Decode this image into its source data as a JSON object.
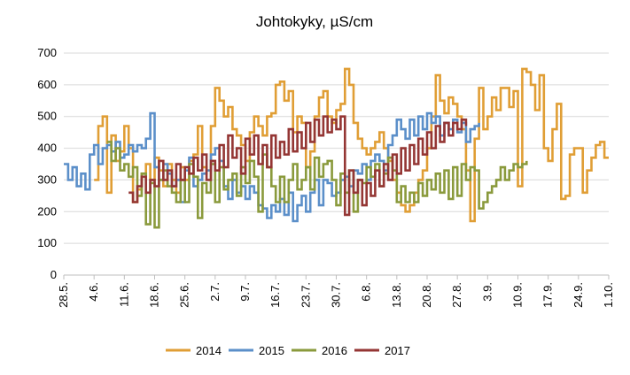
{
  "chart_data": {
    "type": "line",
    "title": "Johtokyky, µS/cm",
    "xlabel": "",
    "ylabel": "",
    "ylim": [
      0,
      700
    ],
    "yticks": [
      0,
      100,
      200,
      300,
      400,
      500,
      600,
      700
    ],
    "xlim": [
      0,
      126
    ],
    "xticks": [
      "28.5.",
      "4.6.",
      "11.6.",
      "18.6.",
      "25.6.",
      "2.7.",
      "9.7.",
      "16.7.",
      "23.7.",
      "30.7.",
      "6.8.",
      "13.8.",
      "20.8.",
      "27.8.",
      "3.9.",
      "10.9.",
      "17.9.",
      "24.9.",
      "1.10."
    ],
    "xtick_step_days": 7,
    "grid": "horizontal",
    "legend": "bottom",
    "series": [
      {
        "name": "2014",
        "color": "#E09E35",
        "x": [
          7,
          8,
          9,
          10,
          11,
          12,
          13,
          14,
          15,
          16,
          17,
          18,
          19,
          20,
          21,
          22,
          23,
          24,
          25,
          26,
          27,
          28,
          29,
          30,
          31,
          32,
          33,
          34,
          35,
          36,
          37,
          38,
          39,
          40,
          41,
          42,
          43,
          44,
          45,
          46,
          47,
          48,
          49,
          50,
          51,
          52,
          53,
          54,
          55,
          56,
          57,
          58,
          59,
          60,
          61,
          62,
          63,
          64,
          65,
          66,
          67,
          68,
          69,
          70,
          71,
          72,
          73,
          74,
          75,
          76,
          77,
          78,
          79,
          80,
          81,
          82,
          83,
          84,
          85,
          86,
          87,
          88,
          89,
          90,
          91,
          92,
          93,
          94,
          95,
          96,
          97,
          98,
          99,
          100,
          101,
          102,
          103,
          104,
          105,
          106,
          107,
          108,
          109,
          110,
          111,
          112,
          113,
          114,
          115,
          116,
          117,
          118,
          119,
          120,
          121,
          122,
          123,
          124,
          125,
          126
        ],
        "values": [
          300,
          470,
          500,
          260,
          440,
          360,
          390,
          470,
          400,
          230,
          270,
          320,
          350,
          300,
          370,
          330,
          280,
          350,
          300,
          260,
          340,
          300,
          360,
          380,
          470,
          340,
          330,
          470,
          590,
          550,
          500,
          530,
          460,
          440,
          410,
          360,
          450,
          500,
          470,
          440,
          500,
          510,
          600,
          610,
          550,
          580,
          450,
          500,
          480,
          340,
          390,
          500,
          560,
          580,
          500,
          480,
          520,
          540,
          650,
          600,
          480,
          430,
          400,
          380,
          400,
          420,
          450,
          400,
          360,
          300,
          260,
          220,
          200,
          220,
          260,
          300,
          330,
          400,
          500,
          630,
          550,
          510,
          560,
          540,
          500,
          460,
          330,
          170,
          430,
          590,
          460,
          500,
          560,
          520,
          590,
          590,
          530,
          580,
          280,
          650,
          640,
          600,
          520,
          630,
          400,
          360,
          460,
          540,
          240,
          250,
          380,
          400,
          400,
          260,
          330,
          370,
          410,
          420,
          370,
          370
        ]
      },
      {
        "name": "2015",
        "color": "#5B8FC9",
        "x": [
          0,
          1,
          2,
          3,
          4,
          5,
          6,
          7,
          8,
          9,
          10,
          11,
          12,
          13,
          14,
          15,
          16,
          17,
          18,
          19,
          20,
          21,
          22,
          23,
          24,
          25,
          26,
          27,
          28,
          29,
          30,
          31,
          32,
          33,
          34,
          35,
          36,
          37,
          38,
          39,
          40,
          41,
          42,
          43,
          44,
          45,
          46,
          47,
          48,
          49,
          50,
          51,
          52,
          53,
          54,
          55,
          56,
          57,
          58,
          59,
          60,
          61,
          62,
          63,
          64,
          65,
          66,
          67,
          68,
          69,
          70,
          71,
          72,
          73,
          74,
          75,
          76,
          77,
          78,
          79,
          80,
          81,
          82,
          83,
          84,
          85,
          86,
          87,
          88,
          89,
          90,
          91,
          92,
          93,
          94,
          95,
          96
        ],
        "values": [
          350,
          300,
          340,
          280,
          320,
          270,
          380,
          410,
          350,
          400,
          410,
          390,
          420,
          370,
          380,
          410,
          390,
          410,
          400,
          430,
          510,
          340,
          300,
          350,
          320,
          280,
          300,
          230,
          330,
          370,
          280,
          300,
          320,
          330,
          380,
          400,
          360,
          280,
          240,
          300,
          260,
          280,
          240,
          280,
          260,
          220,
          210,
          180,
          220,
          200,
          240,
          190,
          260,
          170,
          220,
          250,
          200,
          260,
          300,
          220,
          300,
          290,
          250,
          260,
          300,
          310,
          280,
          330,
          320,
          350,
          300,
          360,
          380,
          360,
          330,
          410,
          440,
          490,
          460,
          430,
          490,
          440,
          500,
          460,
          510,
          480,
          500,
          440,
          480,
          460,
          490,
          450,
          480,
          420,
          460,
          470,
          480
        ]
      },
      {
        "name": "2016",
        "color": "#8A9A3C",
        "x": [
          10,
          11,
          12,
          13,
          14,
          15,
          16,
          17,
          18,
          19,
          20,
          21,
          22,
          23,
          24,
          25,
          26,
          27,
          28,
          29,
          30,
          31,
          32,
          33,
          34,
          35,
          36,
          37,
          38,
          39,
          40,
          41,
          42,
          43,
          44,
          45,
          46,
          47,
          48,
          49,
          50,
          51,
          52,
          53,
          54,
          55,
          56,
          57,
          58,
          59,
          60,
          61,
          62,
          63,
          64,
          65,
          66,
          67,
          68,
          69,
          70,
          71,
          72,
          73,
          74,
          75,
          76,
          77,
          78,
          79,
          80,
          81,
          82,
          83,
          84,
          85,
          86,
          87,
          88,
          89,
          90,
          91,
          92,
          93,
          94,
          95,
          96,
          97,
          98,
          99,
          100,
          101,
          102,
          103,
          104,
          105,
          106,
          107
        ],
        "values": [
          420,
          360,
          400,
          330,
          350,
          310,
          340,
          250,
          320,
          160,
          290,
          150,
          300,
          330,
          280,
          260,
          230,
          300,
          230,
          350,
          310,
          180,
          290,
          260,
          350,
          230,
          340,
          270,
          300,
          320,
          250,
          340,
          290,
          360,
          310,
          200,
          380,
          340,
          280,
          230,
          310,
          230,
          300,
          350,
          270,
          300,
          340,
          270,
          370,
          310,
          350,
          360,
          300,
          220,
          320,
          260,
          330,
          200,
          300,
          290,
          340,
          310,
          350,
          280,
          320,
          370,
          330,
          230,
          280,
          230,
          260,
          230,
          290,
          250,
          300,
          270,
          320,
          260,
          330,
          240,
          340,
          250,
          350,
          300,
          340,
          330,
          210,
          230,
          260,
          280,
          300,
          340,
          300,
          330,
          350,
          340,
          350,
          360
        ]
      },
      {
        "name": "2017",
        "color": "#943634",
        "x": [
          15,
          16,
          17,
          18,
          19,
          20,
          21,
          22,
          23,
          24,
          25,
          26,
          27,
          28,
          29,
          30,
          31,
          32,
          33,
          34,
          35,
          36,
          37,
          38,
          39,
          40,
          41,
          42,
          43,
          44,
          45,
          46,
          47,
          48,
          49,
          50,
          51,
          52,
          53,
          54,
          55,
          56,
          57,
          58,
          59,
          60,
          61,
          62,
          63,
          64,
          65,
          66,
          67,
          68,
          69,
          70,
          71,
          72,
          73,
          74,
          75,
          76,
          77,
          78,
          79,
          80,
          81,
          82,
          83,
          84,
          85,
          86,
          87,
          88,
          89,
          90,
          91,
          92,
          93
        ],
        "values": [
          260,
          230,
          280,
          310,
          260,
          300,
          280,
          360,
          300,
          330,
          280,
          350,
          300,
          340,
          320,
          370,
          330,
          380,
          300,
          360,
          330,
          410,
          340,
          440,
          370,
          400,
          320,
          430,
          380,
          440,
          350,
          410,
          340,
          440,
          370,
          420,
          380,
          460,
          390,
          450,
          400,
          480,
          420,
          490,
          440,
          500,
          450,
          490,
          460,
          500,
          190,
          330,
          260,
          300,
          220,
          290,
          250,
          330,
          280,
          350,
          300,
          380,
          320,
          400,
          330,
          410,
          350,
          430,
          380,
          450,
          400,
          470,
          420,
          480,
          440,
          480,
          460,
          490,
          470
        ]
      }
    ]
  }
}
